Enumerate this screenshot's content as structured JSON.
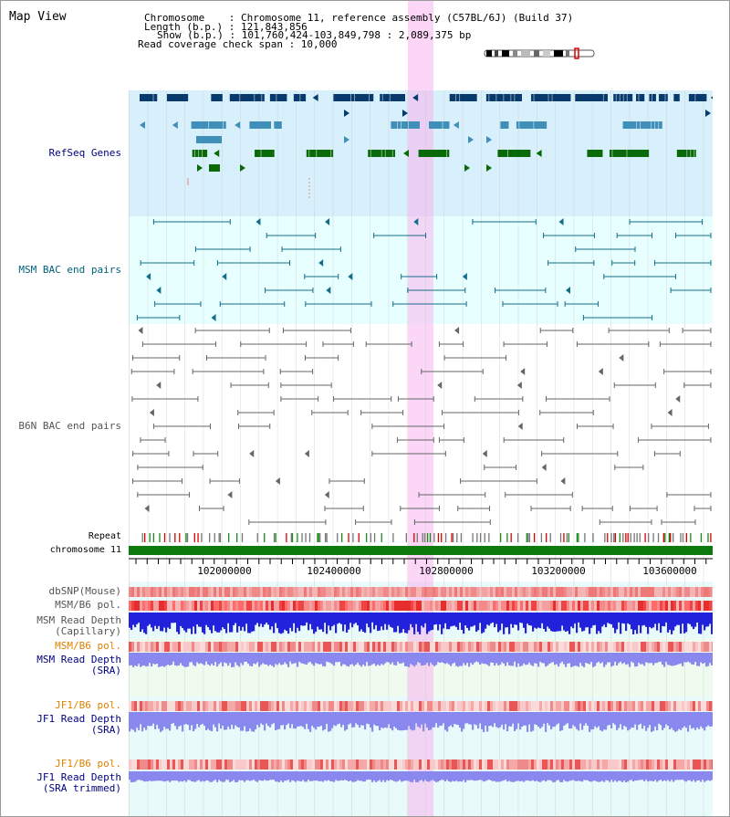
{
  "title": "Map View",
  "info": {
    "line1": "Chromosome    : Chromosome 11, reference assembly (C57BL/6J) (Build 37)",
    "line2": "Length (b.p.) : 121,843,856",
    "line3": "Show (b.p.) : 101,760,424-103,849,798 : 2,089,375 bp",
    "line4": "Read coverage check span : 10,000"
  },
  "tracks": {
    "refseq": "RefSeq Genes",
    "msm_bac": "MSM BAC end pairs",
    "b6n_bac": "B6N BAC end pairs",
    "repeat": "Repeat",
    "chromosome": "chromosome 11",
    "dbsnp": "dbSNP(Mouse)",
    "msm_b6_pol_1": "MSM/B6 pol.",
    "msm_depth_cap_1": "MSM Read Depth",
    "msm_depth_cap_2": "(Capillary)",
    "msm_b6_pol_2": "MSM/B6 pol.",
    "msm_depth_sra_1": "MSM Read Depth",
    "msm_depth_sra_2": "(SRA)",
    "jf1_pol_1": "JF1/B6 pol.",
    "jf1_depth_sra_1": "JF1 Read Depth",
    "jf1_depth_sra_2": "(SRA)",
    "jf1_pol_2": "JF1/B6 pol.",
    "jf1_depth_trim_1": "JF1 Read Depth",
    "jf1_depth_trim_2": "(SRA trimmed)"
  },
  "axis": {
    "labels": [
      "102000000",
      "102400000",
      "102800000",
      "103200000",
      "103600000"
    ]
  },
  "colors": {
    "navy_label": "#000080",
    "teal_label": "#005f7a",
    "orange_label": "#e08000",
    "refseq_bg": "#d8f0fb",
    "bac_bg": "#e8ffff",
    "highlight": "#f7b4ee",
    "gene_dark": "#083a6e",
    "gene_mid": "#3f8fb8",
    "gene_green": "#0a6a0a",
    "bac_msm": "#136e8a",
    "bac_b6n": "#666666",
    "chrom_green": "#0c7a0c",
    "depth_blue": "#2222dd",
    "depth_light": "#8888ee",
    "pol_red": "#ee3333"
  }
}
